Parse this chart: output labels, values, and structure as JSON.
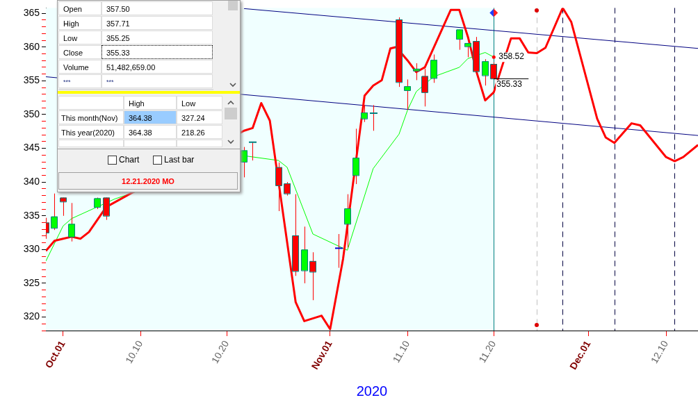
{
  "chart_data": [
    {
      "type": "candlestick",
      "x": [
        "2020-09-29",
        "2020-09-30",
        "2020-10-01",
        "2020-10-02",
        "2020-10-05",
        "2020-10-06",
        "2020-10-22",
        "2020-10-23",
        "2020-10-26",
        "2020-10-27",
        "2020-10-28",
        "2020-10-29",
        "2020-10-30",
        "2020-11-02",
        "2020-11-03",
        "2020-11-04",
        "2020-11-05",
        "2020-11-06",
        "2020-11-09",
        "2020-11-10",
        "2020-11-11",
        "2020-11-12",
        "2020-11-13",
        "2020-11-16",
        "2020-11-17",
        "2020-11-18",
        "2020-11-19",
        "2020-11-20"
      ],
      "ohlc": [
        [
          334.0,
          334.7,
          331.6,
          332.5
        ],
        [
          333.2,
          338.3,
          332.9,
          334.9
        ],
        [
          337.7,
          337.7,
          335.0,
          337.1
        ],
        [
          331.9,
          336.9,
          331.2,
          333.8
        ],
        [
          336.3,
          337.7,
          336.0,
          337.6
        ],
        [
          337.7,
          337.7,
          334.4,
          335.0
        ],
        [
          343.0,
          345.2,
          340.7,
          344.7
        ],
        [
          345.9,
          345.9,
          343.2,
          345.9
        ],
        [
          342.2,
          342.9,
          335.7,
          339.5
        ],
        [
          339.8,
          340.0,
          338.0,
          338.3
        ],
        [
          332.1,
          338.2,
          326.1,
          326.8
        ],
        [
          326.9,
          333.4,
          325.0,
          330.0
        ],
        [
          328.3,
          329.6,
          322.5,
          326.7
        ],
        [
          330.2,
          332.3,
          327.3,
          330.2
        ],
        [
          333.8,
          338.2,
          330.3,
          336.1
        ],
        [
          341.0,
          347.9,
          339.7,
          343.6
        ],
        [
          349.4,
          351.4,
          348.9,
          350.3
        ],
        [
          350.2,
          351.4,
          347.6,
          350.2
        ],
        [
          364.1,
          364.4,
          354.1,
          354.8
        ],
        [
          353.6,
          355.2,
          350.7,
          354.2
        ],
        [
          356.5,
          357.6,
          355.1,
          356.8
        ],
        [
          355.7,
          356.8,
          351.2,
          353.3
        ],
        [
          355.4,
          358.9,
          354.7,
          358.1
        ],
        [
          361.2,
          362.6,
          359.6,
          362.6
        ],
        [
          360.1,
          360.6,
          358.5,
          360.6
        ],
        [
          360.9,
          361.5,
          356.3,
          356.4
        ],
        [
          355.8,
          358.2,
          354.3,
          357.9
        ],
        [
          357.5,
          357.71,
          355.25,
          355.33
        ]
      ],
      "colors": [
        "#ff0000",
        "#00ff00",
        "#ff0000",
        "#00ff00",
        "#00ff00",
        "#ff0000",
        "#00ff00",
        "#008080",
        "#ff0000",
        "#ff0000",
        "#ff0000",
        "#00ff00",
        "#ff0000",
        "#0000cc",
        "#00ff00",
        "#00ff00",
        "#00ff00",
        "#008080",
        "#ff0000",
        "#00ff00",
        "#00ff00",
        "#ff0000",
        "#00ff00",
        "#00ff00",
        "#00ff00",
        "#ff0000",
        "#00ff00",
        "#ff0000"
      ],
      "series": [
        {
          "type": "line",
          "color": "#ff0000",
          "x": [
            "2020-09-29",
            "2020-09-30",
            "2020-10-01",
            "2020-10-02",
            "2020-10-03",
            "2020-10-04",
            "2020-10-06",
            "2020-10-22",
            "2020-10-23",
            "2020-10-24",
            "2020-10-25",
            "2020-10-28",
            "2020-10-29",
            "2020-10-31",
            "2020-11-01",
            "2020-11-02T12:00",
            "2020-11-05",
            "2020-11-06",
            "2020-11-07",
            "2020-11-08",
            "2020-11-08T16:00",
            "2020-11-10",
            "2020-11-11",
            "2020-11-12",
            "2020-11-15",
            "2020-11-16",
            "2020-11-17",
            "2020-11-18",
            "2020-11-19",
            "2020-11-20",
            "2020-11-22",
            "2020-11-23",
            "2020-11-24",
            "2020-11-25",
            "2020-11-26",
            "2020-11-28",
            "2020-11-29",
            "2020-12-02",
            "2020-12-03",
            "2020-12-04",
            "2020-12-06",
            "2020-12-07",
            "2020-12-10",
            "2020-12-11",
            "2020-12-12",
            "2020-12-13T17:00"
          ],
          "values": [
            329.8,
            331.3,
            331.6,
            331.9,
            331.6,
            332.6,
            336.3,
            347.6,
            348.0,
            351.7,
            349.1,
            322.2,
            319.4,
            320.2,
            318.2,
            328.6,
            352.8,
            354.3,
            355.1,
            359.8,
            360.0,
            358.0,
            356.3,
            357.0,
            365.5,
            365.5,
            361.5,
            356.3,
            352.1,
            353.3,
            361.3,
            361.3,
            359.2,
            359.1,
            359.9,
            365.8,
            363.7,
            349.4,
            346.6,
            345.8,
            348.7,
            348.4,
            343.7,
            343.1,
            343.7,
            345.5
          ]
        },
        {
          "type": "line",
          "color": "#00ff00",
          "x": [
            "2020-09-29",
            "2020-10-01",
            "2020-10-02",
            "2020-10-06",
            "2020-10-07",
            "2020-10-22",
            "2020-10-26",
            "2020-10-27",
            "2020-10-30",
            "2020-11-03",
            "2020-11-06",
            "2020-11-09",
            "2020-11-10",
            "2020-11-11",
            "2020-11-12",
            "2020-11-13",
            "2020-11-16",
            "2020-11-17",
            "2020-11-18",
            "2020-11-19",
            "2020-11-20"
          ],
          "values": [
            328.3,
            333.5,
            334.6,
            null,
            337.5,
            343.9,
            343.2,
            342.2,
            332.3,
            329.9,
            342.0,
            347.1,
            350.7,
            353.4,
            null,
            355.6,
            357.0,
            358.3,
            null,
            359.2,
            358.5
          ]
        },
        {
          "type": "line",
          "color": "#000080",
          "x": [
            "2020-10-22",
            "2020-12-13T17:00"
          ],
          "values": [
            365.7,
            359.8
          ]
        },
        {
          "type": "line",
          "color": "#000080",
          "x": [
            "2020-09-29",
            "2020-12-13T17:00"
          ],
          "values": [
            355.6,
            346.9
          ]
        }
      ],
      "xlim": [
        "2020-09-29",
        "2020-12-13T17:00"
      ],
      "xticks": [
        {
          "value": "2020-10-01",
          "label": "Oct.01"
        },
        {
          "value": "2020-10-10",
          "label": "10.10"
        },
        {
          "value": "2020-10-20",
          "label": "10.20"
        },
        {
          "value": "2020-11-01",
          "label": "Nov.01"
        },
        {
          "value": "2020-11-10",
          "label": "11.10"
        },
        {
          "value": "2020-11-20",
          "label": "11.20"
        },
        {
          "value": "2020-12-01",
          "label": "Dec.01"
        },
        {
          "value": "2020-12-10",
          "label": "12.10"
        }
      ],
      "ylim": [
        318,
        365.8
      ],
      "yticks": [
        {
          "value": 318,
          "label": null
        },
        {
          "value": 319,
          "label": null
        },
        320,
        {
          "value": 321,
          "label": null
        },
        {
          "value": 322,
          "label": null
        },
        {
          "value": 323,
          "label": null
        },
        {
          "value": 324,
          "label": null
        },
        325,
        {
          "value": 326,
          "label": null
        },
        {
          "value": 327,
          "label": null
        },
        {
          "value": 328,
          "label": null
        },
        {
          "value": 329,
          "label": null
        },
        330,
        {
          "value": 331,
          "label": null
        },
        {
          "value": 332,
          "label": null
        },
        {
          "value": 333,
          "label": null
        },
        {
          "value": 334,
          "label": null
        },
        335,
        {
          "value": 336,
          "label": null
        },
        {
          "value": 337,
          "label": null
        },
        {
          "value": 338,
          "label": null
        },
        {
          "value": 339,
          "label": null
        },
        340,
        {
          "value": 341,
          "label": null
        },
        {
          "value": 342,
          "label": null
        },
        {
          "value": 343,
          "label": null
        },
        {
          "value": 344,
          "label": null
        },
        345,
        {
          "value": 346,
          "label": null
        },
        {
          "value": 347,
          "label": null
        },
        {
          "value": 348,
          "label": null
        },
        {
          "value": 349,
          "label": null
        },
        350,
        {
          "value": 351,
          "label": null
        },
        {
          "value": 352,
          "label": null
        },
        {
          "value": 353,
          "label": null
        },
        {
          "value": 354,
          "label": null
        },
        355,
        {
          "value": 356,
          "label": null
        },
        {
          "value": 357,
          "label": null
        },
        {
          "value": 358,
          "label": null
        },
        {
          "value": 359,
          "label": null
        },
        360,
        {
          "value": 361,
          "label": null
        },
        {
          "value": 362,
          "label": null
        },
        {
          "value": 363,
          "label": null
        },
        {
          "value": 364,
          "label": null
        },
        365
      ],
      "xlabel": "2020",
      "ref_lines": [
        {
          "axis": "x",
          "value": "2020-11-20",
          "color": "#008080"
        },
        {
          "axis": "x",
          "value": "2020-11-25",
          "color": "#c0c0c0",
          "line_style": "dashed"
        },
        {
          "axis": "x",
          "value": "2020-11-28",
          "color": "#000040",
          "line_style": "dashed"
        },
        {
          "axis": "x",
          "value": "2020-12-04",
          "color": "#000040",
          "line_style": "dashed"
        },
        {
          "axis": "x",
          "value": "2020-12-11",
          "color": "#000040",
          "line_style": "dashed"
        }
      ],
      "bands": [
        {
          "axis": "x",
          "from": "2020-09-29",
          "to": "2020-11-20",
          "color": "#f0ffff"
        }
      ],
      "annotations": [
        {
          "text": "358.52",
          "x": "2020-11-20",
          "y": 358.52
        },
        {
          "text": "355.33",
          "x": "2020-11-20",
          "y": 355.33
        }
      ],
      "marker": "none",
      "grid": false,
      "legend": false
    },
    {
      "type": "other",
      "annotations": [
        "Open",
        "357.50",
        "High",
        "357.71",
        "Low",
        "355.25",
        "Close",
        "355.33",
        "Volume",
        "51,482,659.00",
        "***",
        "***",
        "High",
        "Low",
        "This month(Nov)",
        "364.38",
        "327.24",
        "This year(2020)",
        "364.38",
        "218.26",
        "Chart",
        "Last bar",
        "12.21.2020 MO"
      ]
    }
  ]
}
